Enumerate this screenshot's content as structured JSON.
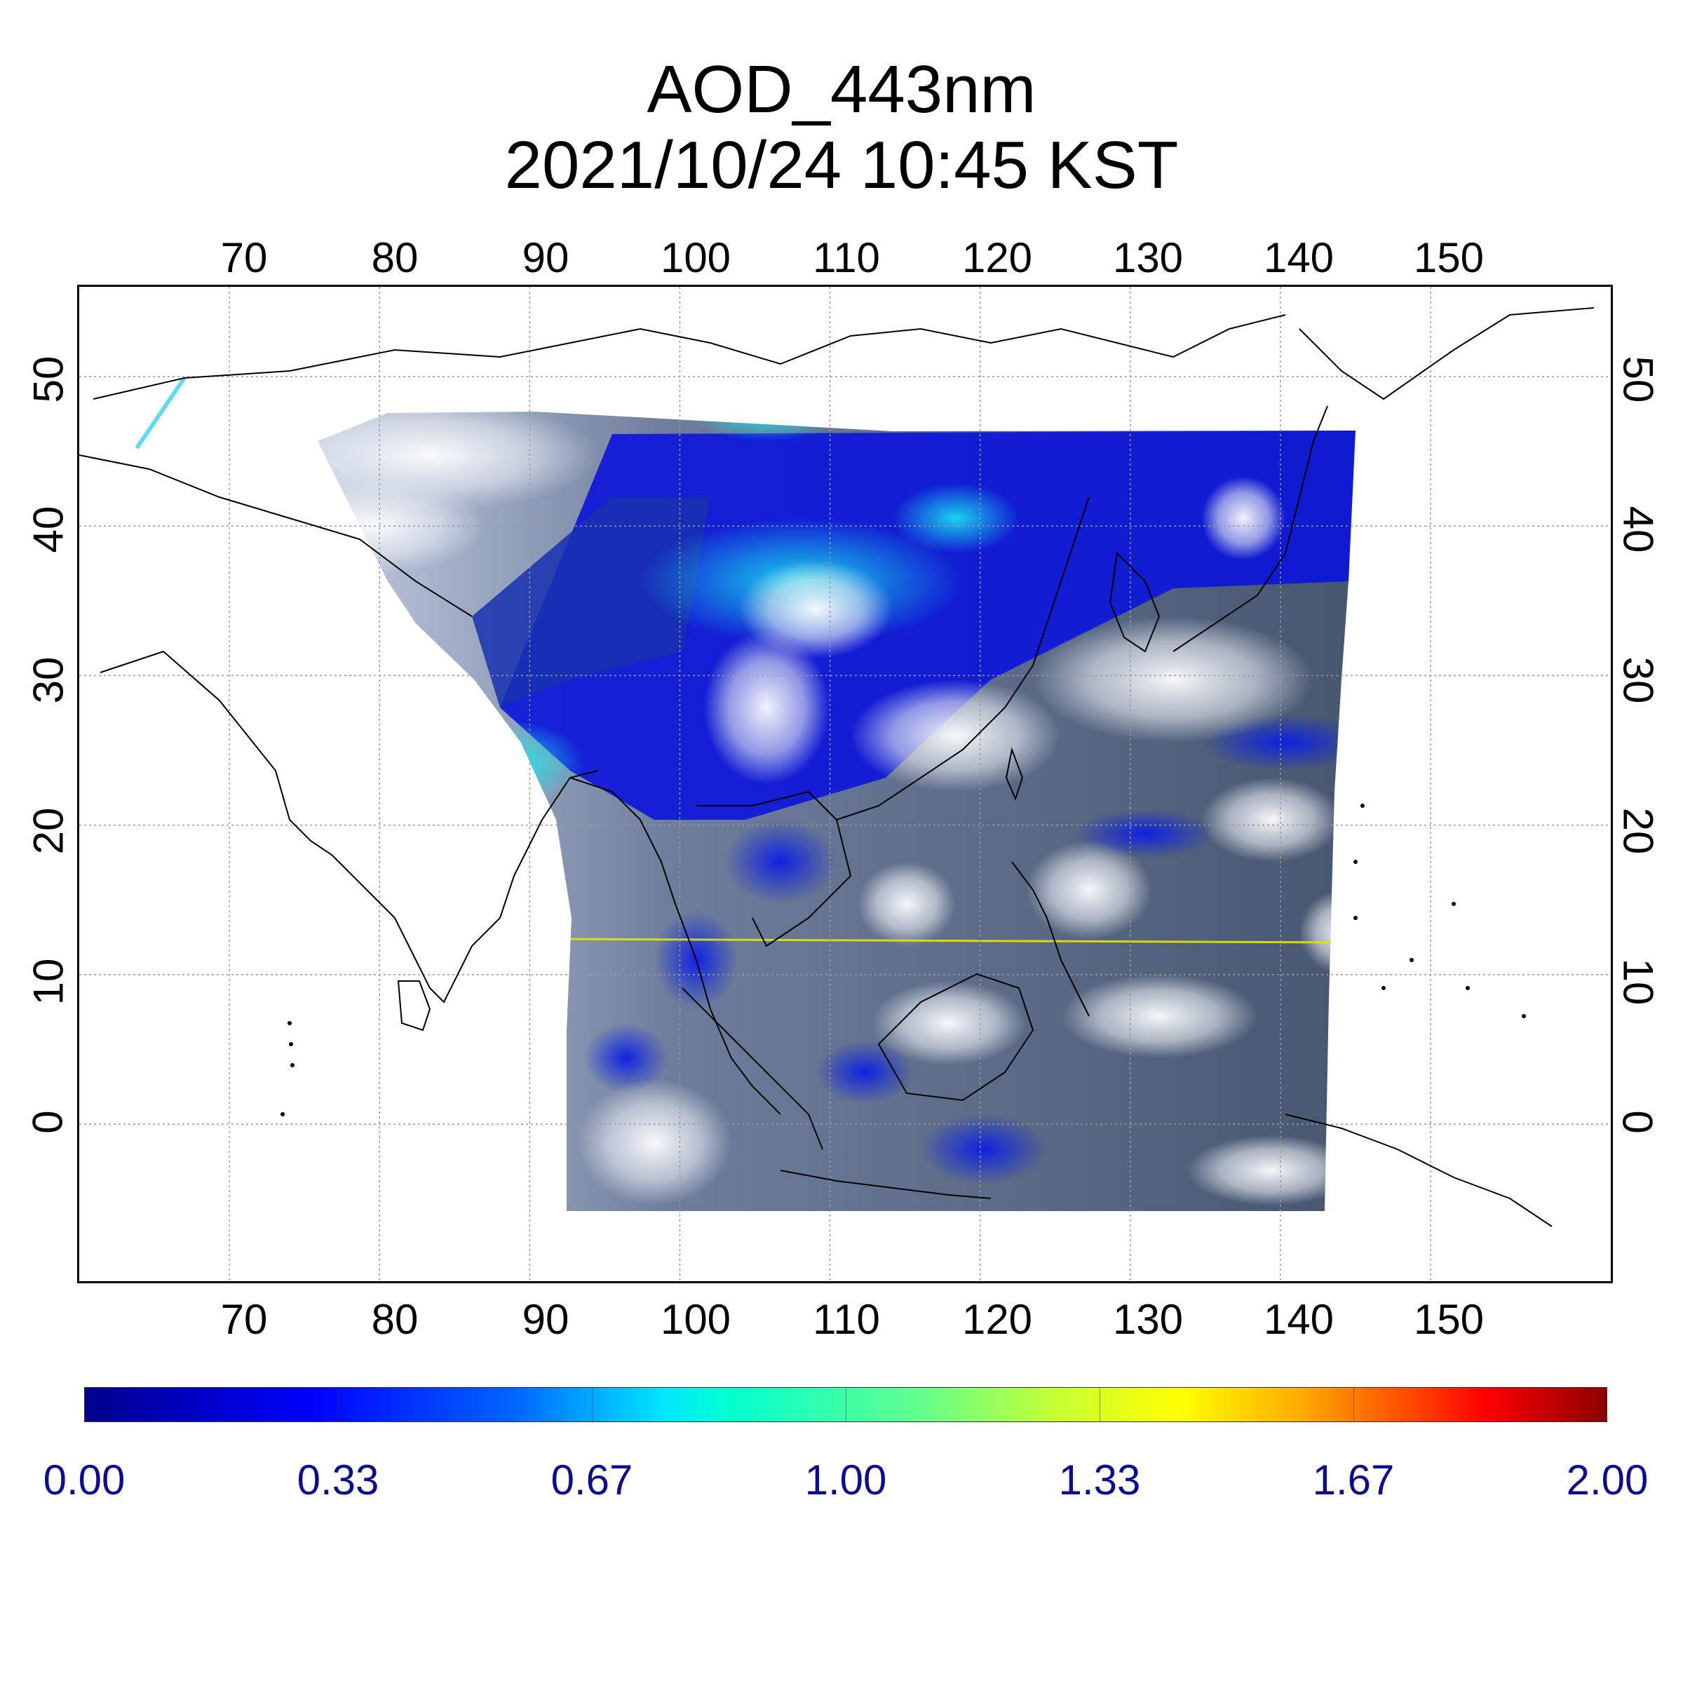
{
  "title": {
    "line1": "AOD_443nm",
    "line2": "2021/10/24 10:45 KST"
  },
  "map": {
    "projection": "equirectangular",
    "lon_range": [
      60,
      162
    ],
    "lat_range": [
      -10.5,
      56
    ],
    "lon_ticks": [
      "70",
      "80",
      "90",
      "100",
      "110",
      "120",
      "130",
      "140",
      "150"
    ],
    "lat_ticks": [
      "50",
      "40",
      "30",
      "20",
      "10",
      "0"
    ],
    "gridlines": true,
    "highlight_line_color": "#ffff00",
    "highlight_line_lat": 12
  },
  "colorbar": {
    "range": [
      0.0,
      2.0
    ],
    "ticks": [
      "0.00",
      "0.33",
      "0.67",
      "1.00",
      "1.33",
      "1.67",
      "2.00"
    ],
    "colormap": "jet",
    "tick_color": "#0c0c90"
  }
}
